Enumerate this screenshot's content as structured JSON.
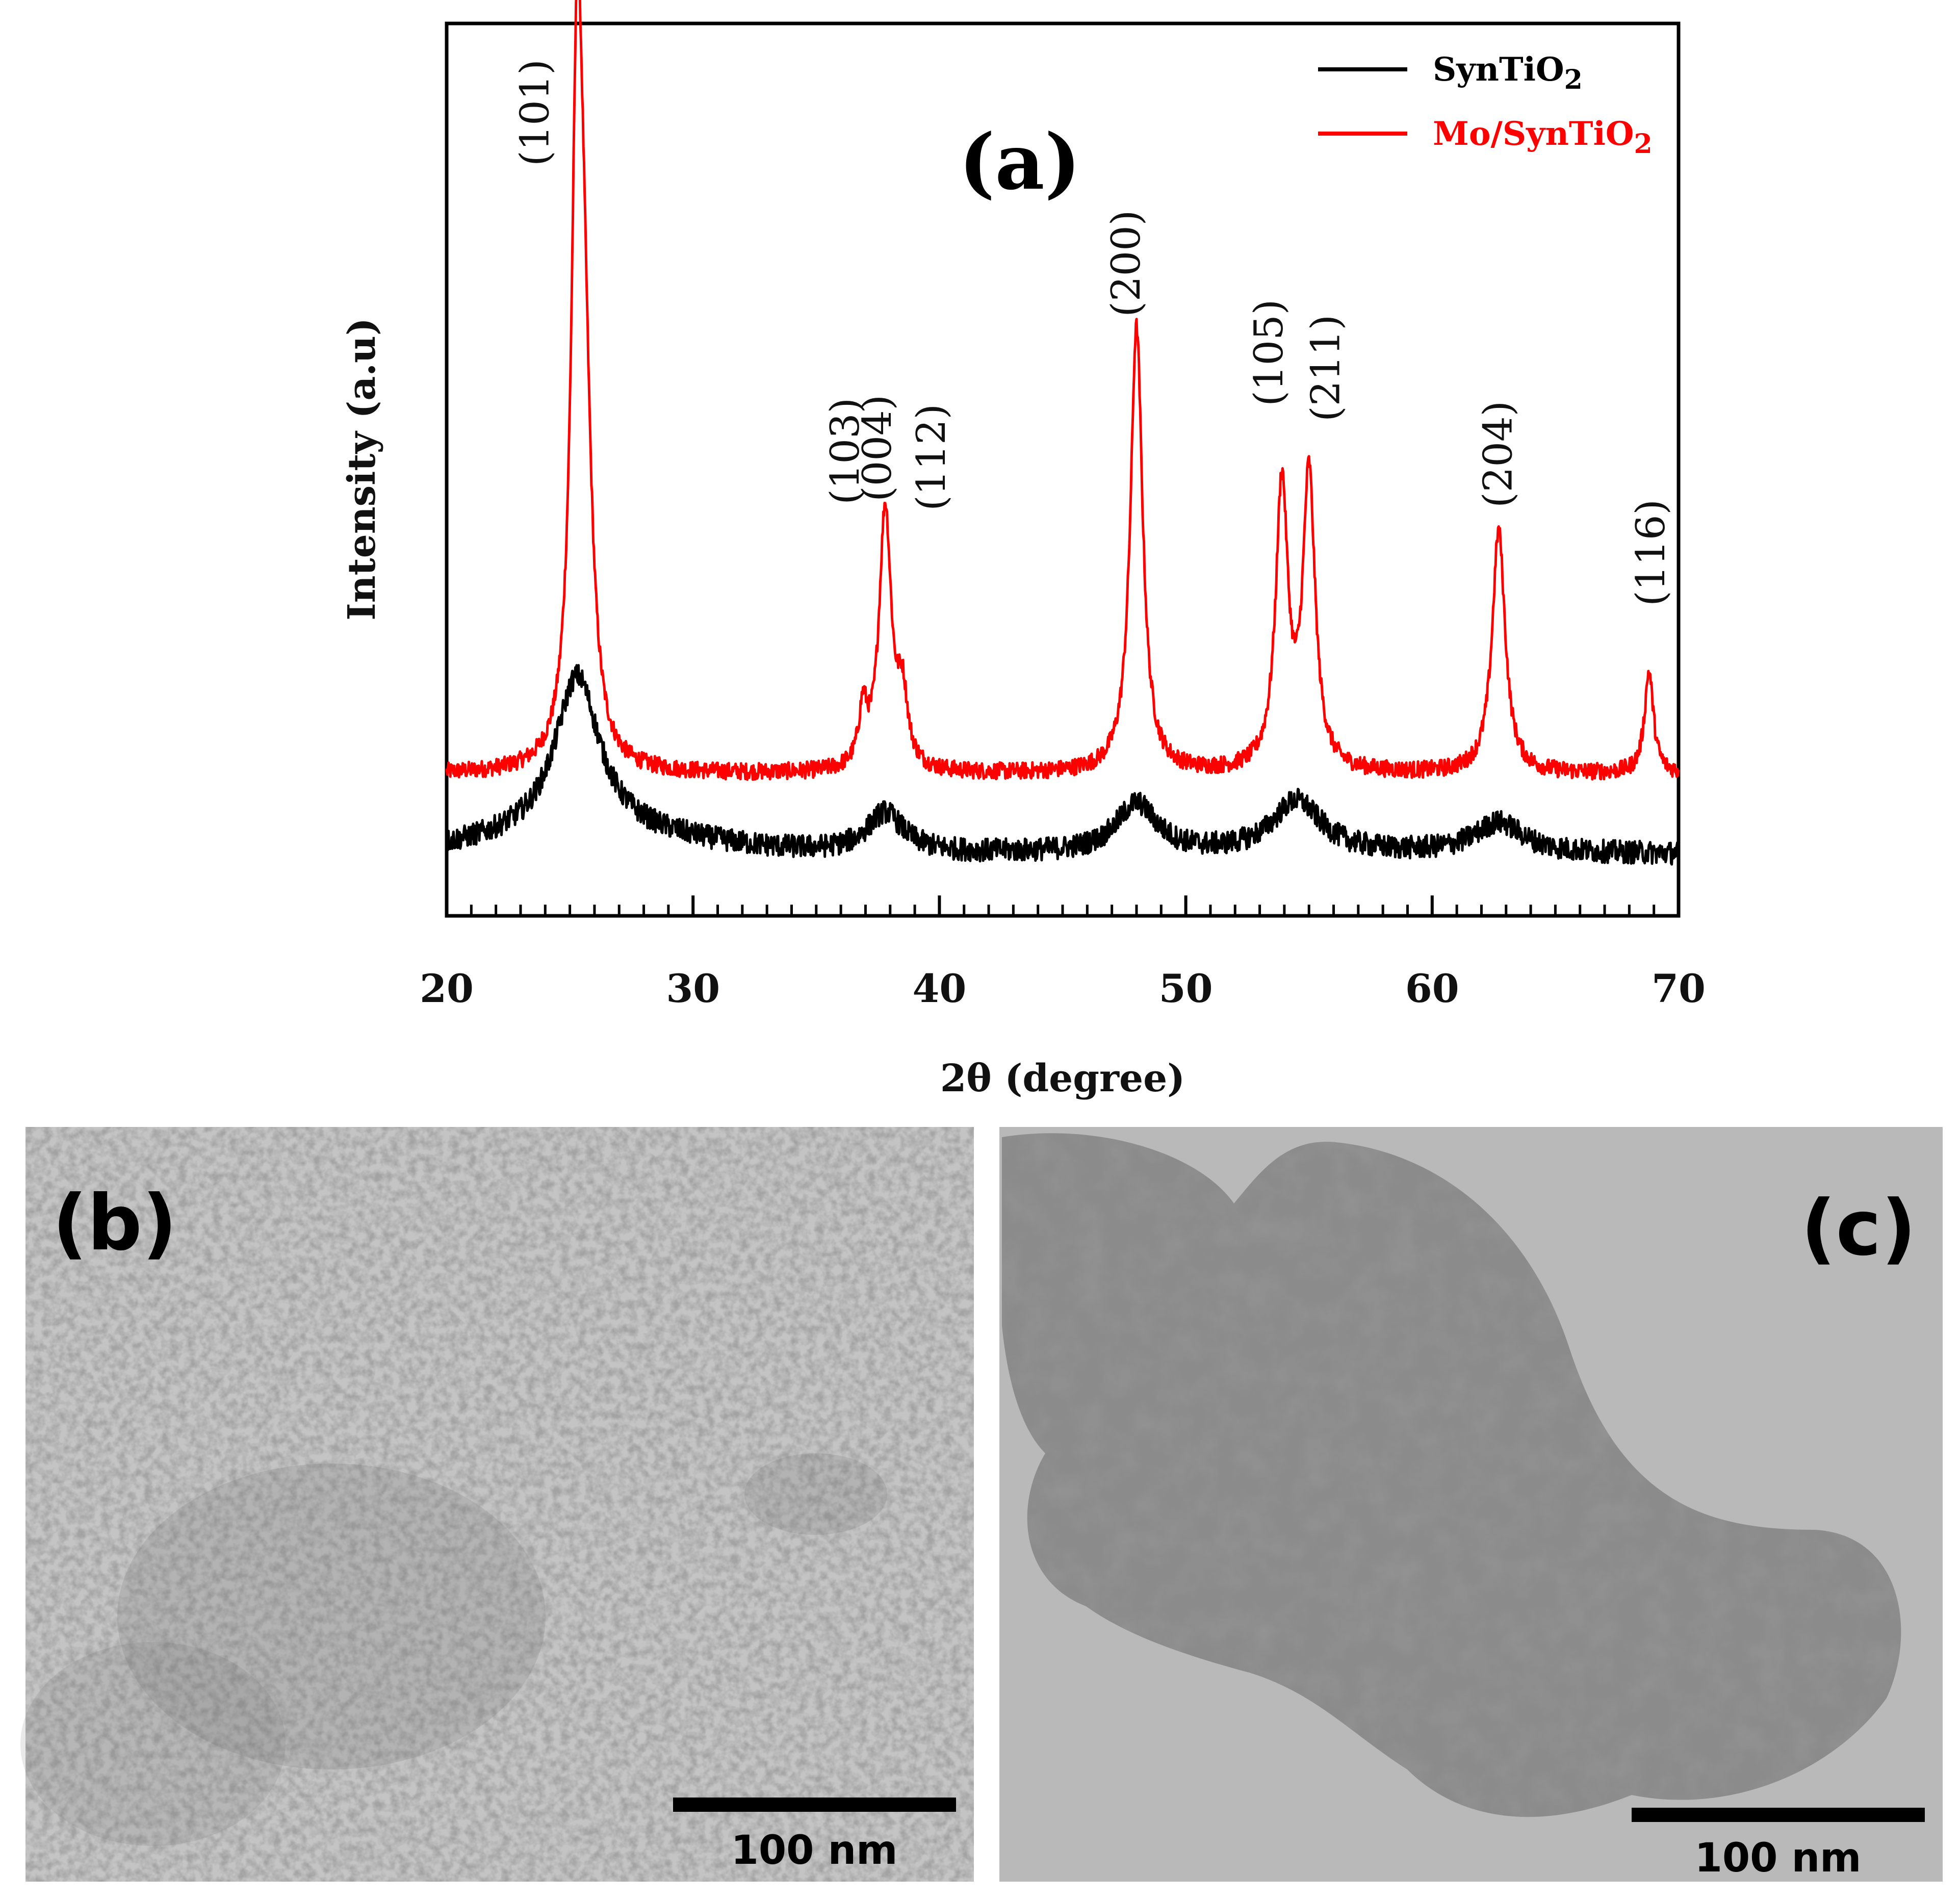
{
  "chart_data": {
    "type": "line",
    "panel_label": "(a)",
    "xlabel": "2θ (degree)",
    "ylabel": "Intensity (a.u)",
    "xlim": [
      20,
      70
    ],
    "xticks": [
      20,
      30,
      40,
      50,
      60,
      70
    ],
    "legend_position": "top-right",
    "legend": [
      {
        "name": "SynTiO",
        "subscript": "2",
        "color": "#000000"
      },
      {
        "name": "Mo/SynTiO",
        "subscript": "2",
        "color": "#ff0000"
      }
    ],
    "series": [
      {
        "name": "Mo/SynTiO2",
        "color": "#ff0000",
        "baseline": 0.46,
        "peaks": [
          {
            "x": 25.3,
            "height": 2.1,
            "width": 0.28
          },
          {
            "x": 25.6,
            "height": 0.9,
            "width": 0.35
          },
          {
            "x": 36.9,
            "height": 0.18,
            "width": 0.2
          },
          {
            "x": 37.8,
            "height": 0.85,
            "width": 0.3
          },
          {
            "x": 38.5,
            "height": 0.22,
            "width": 0.25
          },
          {
            "x": 48.0,
            "height": 1.45,
            "width": 0.3
          },
          {
            "x": 53.9,
            "height": 0.92,
            "width": 0.3
          },
          {
            "x": 55.0,
            "height": 0.95,
            "width": 0.3
          },
          {
            "x": 62.7,
            "height": 0.79,
            "width": 0.32
          },
          {
            "x": 68.8,
            "height": 0.33,
            "width": 0.22
          }
        ]
      },
      {
        "name": "SynTiO2",
        "color": "#000000",
        "baseline": 0.2,
        "peaks": [
          {
            "x": 25.3,
            "height": 0.52,
            "width": 1.1
          },
          {
            "x": 37.8,
            "height": 0.13,
            "width": 0.9
          },
          {
            "x": 48.0,
            "height": 0.16,
            "width": 1.0
          },
          {
            "x": 54.5,
            "height": 0.17,
            "width": 1.2
          },
          {
            "x": 62.7,
            "height": 0.1,
            "width": 1.2
          }
        ]
      }
    ],
    "annotations": [
      {
        "text": "(101)",
        "x": 23.7,
        "y": 2.61
      },
      {
        "text": "(103)",
        "x": 36.3,
        "y": 1.51
      },
      {
        "text": "(004)",
        "x": 37.6,
        "y": 1.52
      },
      {
        "text": "(112)",
        "x": 39.8,
        "y": 1.49
      },
      {
        "text": "(200)",
        "x": 47.7,
        "y": 2.12
      },
      {
        "text": "(105)",
        "x": 53.5,
        "y": 1.83
      },
      {
        "text": "(211)",
        "x": 55.8,
        "y": 1.78
      },
      {
        "text": "(204)",
        "x": 62.8,
        "y": 1.5
      },
      {
        "text": "(116)",
        "x": 69.0,
        "y": 1.18
      }
    ]
  },
  "panels": {
    "b": {
      "label": "(b)",
      "scale_bar": "100 nm"
    },
    "c": {
      "label": "(c)",
      "scale_bar": "100 nm"
    }
  }
}
